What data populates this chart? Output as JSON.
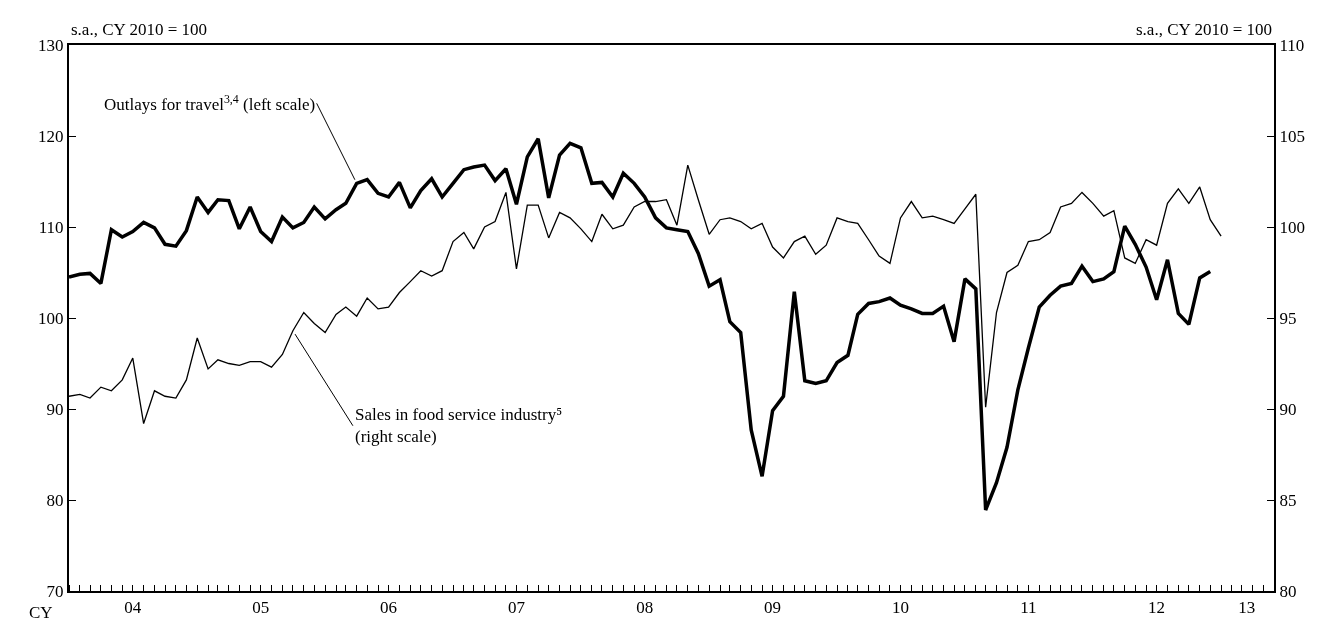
{
  "chart_data": {
    "type": "line",
    "ylabel": "s.a., CY 2010 = 100",
    "y2label": "s.a., CY 2010 = 100",
    "annotations": [
      "CY"
    ],
    "x": [
      "2004-01",
      "2004-02",
      "2004-03",
      "2004-04",
      "2004-05",
      "2004-06",
      "2004-07",
      "2004-08",
      "2004-09",
      "2004-10",
      "2004-11",
      "2004-12",
      "2005-01",
      "2005-02",
      "2005-03",
      "2005-04",
      "2005-05",
      "2005-06",
      "2005-07",
      "2005-08",
      "2005-09",
      "2005-10",
      "2005-11",
      "2005-12",
      "2006-01",
      "2006-02",
      "2006-03",
      "2006-04",
      "2006-05",
      "2006-06",
      "2006-07",
      "2006-08",
      "2006-09",
      "2006-10",
      "2006-11",
      "2006-12",
      "2007-01",
      "2007-02",
      "2007-03",
      "2007-04",
      "2007-05",
      "2007-06",
      "2007-07",
      "2007-08",
      "2007-09",
      "2007-10",
      "2007-11",
      "2007-12",
      "2008-01",
      "2008-02",
      "2008-03",
      "2008-04",
      "2008-05",
      "2008-06",
      "2008-07",
      "2008-08",
      "2008-09",
      "2008-10",
      "2008-11",
      "2008-12",
      "2009-01",
      "2009-02",
      "2009-03",
      "2009-04",
      "2009-05",
      "2009-06",
      "2009-07",
      "2009-08",
      "2009-09",
      "2009-10",
      "2009-11",
      "2009-12",
      "2010-01",
      "2010-02",
      "2010-03",
      "2010-04",
      "2010-05",
      "2010-06",
      "2010-07",
      "2010-08",
      "2010-09",
      "2010-10",
      "2010-11",
      "2010-12",
      "2011-01",
      "2011-02",
      "2011-03",
      "2011-04",
      "2011-05",
      "2011-06",
      "2011-07",
      "2011-08",
      "2011-09",
      "2011-10",
      "2011-11",
      "2011-12",
      "2012-01",
      "2012-02",
      "2012-03",
      "2012-04",
      "2012-05",
      "2012-06",
      "2012-07",
      "2012-08",
      "2012-09",
      "2012-10",
      "2012-11",
      "2012-12",
      "2013-01"
    ],
    "series": [
      {
        "name": "Outlays for travel$^{3,4}$ (left scale)",
        "color": "#000000",
        "axis": "y",
        "values": [
          104.5,
          104.8,
          104.9,
          103.8,
          109.7,
          108.9,
          109.5,
          110.5,
          109.9,
          108.1,
          107.9,
          109.6,
          113.3,
          111.6,
          113.0,
          112.9,
          109.8,
          112.2,
          109.5,
          108.4,
          111.1,
          109.9,
          110.5,
          112.2,
          110.9,
          111.9,
          112.6,
          114.8,
          115.2,
          113.7,
          113.3,
          114.9,
          112.1,
          114.0,
          115.3,
          113.3,
          114.8,
          116.3,
          116.6,
          116.8,
          115.1,
          116.4,
          112.5,
          117.7,
          119.7,
          113.2,
          117.9,
          119.2,
          118.7,
          114.8,
          114.9,
          113.3,
          115.9,
          114.8,
          113.3,
          111.0,
          109.9,
          109.7,
          109.5,
          107.1,
          103.5,
          104.2,
          99.6,
          98.4,
          87.7,
          82.6,
          89.8,
          91.4,
          102.9,
          93.1,
          92.8,
          93.1,
          95.1,
          95.9,
          100.4,
          101.6,
          101.8,
          102.2,
          101.4,
          101.0,
          100.5,
          100.5,
          101.3,
          97.4,
          104.3,
          103.2,
          78.9,
          81.9,
          85.8,
          92.1,
          96.7,
          101.2,
          102.5,
          103.5,
          103.8,
          105.7,
          104.0,
          104.3,
          105.1,
          110.1,
          108.1,
          105.6,
          102.0,
          106.4,
          100.5,
          99.3,
          104.4,
          105.1,
          null
        ]
      },
      {
        "name": "Sales in food service industry⁵\n(right scale)",
        "color": "#000000",
        "axis": "y2",
        "values": [
          90.7,
          90.8,
          90.6,
          91.2,
          91.0,
          91.6,
          92.8,
          89.2,
          91.0,
          90.7,
          90.6,
          91.6,
          93.9,
          92.2,
          92.7,
          92.5,
          92.4,
          92.6,
          92.6,
          92.3,
          93.0,
          94.3,
          95.3,
          94.7,
          94.2,
          95.2,
          95.6,
          95.1,
          96.1,
          95.5,
          95.6,
          96.4,
          97.0,
          97.6,
          97.3,
          97.6,
          99.2,
          99.7,
          98.8,
          100.0,
          100.3,
          101.9,
          97.7,
          101.2,
          101.2,
          99.4,
          100.8,
          100.5,
          99.9,
          99.2,
          100.7,
          99.9,
          100.1,
          101.1,
          101.4,
          101.4,
          101.5,
          100.1,
          103.4,
          101.5,
          99.6,
          100.4,
          100.5,
          100.3,
          99.9,
          100.2,
          98.9,
          98.3,
          99.2,
          99.5,
          98.5,
          99.0,
          100.5,
          100.3,
          100.2,
          99.3,
          98.4,
          98.0,
          100.5,
          101.4,
          100.5,
          100.6,
          100.4,
          100.2,
          101.0,
          101.8,
          90.1,
          95.3,
          97.5,
          97.9,
          99.2,
          99.3,
          99.7,
          101.1,
          101.3,
          101.9,
          101.3,
          100.6,
          100.9,
          98.3,
          98.0,
          99.3,
          99.0,
          101.3,
          102.1,
          101.3,
          102.2,
          100.4,
          99.5
        ]
      }
    ],
    "xlim": [
      "2004-01-01",
      "2013-06-01"
    ],
    "xticks": [
      {
        "value": "2004-07-01",
        "label": "04"
      },
      {
        "value": "2005-07-01",
        "label": "05"
      },
      {
        "value": "2006-07-01",
        "label": "06"
      },
      {
        "value": "2007-07-01",
        "label": "07"
      },
      {
        "value": "2008-07-01",
        "label": "08"
      },
      {
        "value": "2009-07-01",
        "label": "09"
      },
      {
        "value": "2010-07-01",
        "label": "10"
      },
      {
        "value": "2011-07-01",
        "label": "11"
      },
      {
        "value": "2012-07-01",
        "label": "12"
      },
      {
        "value": "2013-03-15",
        "label": "13"
      }
    ],
    "ylim": [
      70,
      130
    ],
    "yticks": [
      70,
      80,
      90,
      100,
      110,
      120,
      130
    ],
    "y2lim": [
      80,
      110
    ],
    "y2ticks": [
      80,
      85,
      90,
      95,
      100,
      105,
      110
    ],
    "legend": false,
    "marker": "none",
    "line_style": "solid"
  }
}
